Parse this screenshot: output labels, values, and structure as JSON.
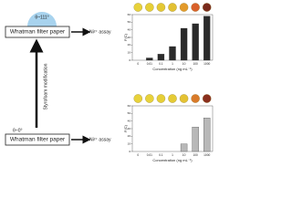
{
  "diagram": {
    "top_angle": "θ~111°",
    "top_paper": "Whatman filter paper",
    "top_assay": "Ni²⁺ assay",
    "modification": "Styrofoam modification",
    "bottom_angle": "θ~0°",
    "bottom_paper": "Whatman filter paper",
    "bottom_assay": "Ni²⁺ assay"
  },
  "chart_data": [
    {
      "type": "bar",
      "categories": [
        "0",
        "0.01",
        "0.1",
        "1",
        "10",
        "100",
        "1000"
      ],
      "values": [
        0,
        3,
        8,
        18,
        42,
        48,
        58
      ],
      "color": "#2b2b2b",
      "spot_colors": [
        "#e8d23a",
        "#e6cf36",
        "#e4c834",
        "#e2c032",
        "#e39a2a",
        "#d9602a",
        "#7a2a1c"
      ],
      "ylim": [
        0,
        60
      ],
      "yticks": [
        0,
        10,
        20,
        30,
        40,
        50,
        60
      ],
      "xlabel": "Concentration (ng mL⁻¹)",
      "ylabel": "F(C)"
    },
    {
      "type": "bar",
      "categories": [
        "0",
        "0.01",
        "0.1",
        "1",
        "10",
        "100",
        "1000"
      ],
      "values": [
        0,
        0,
        0,
        0,
        10,
        32,
        44
      ],
      "color": "#b8b8b8",
      "spot_colors": [
        "#e8d23a",
        "#e8d23a",
        "#e6cf36",
        "#e5cb35",
        "#e4c233",
        "#d97a2a",
        "#8a2f1e"
      ],
      "ylim": [
        0,
        60
      ],
      "yticks": [
        0,
        10,
        20,
        30,
        40,
        50,
        60
      ],
      "xlabel": "Concentration (ng mL⁻¹)",
      "ylabel": "F(C)"
    }
  ]
}
